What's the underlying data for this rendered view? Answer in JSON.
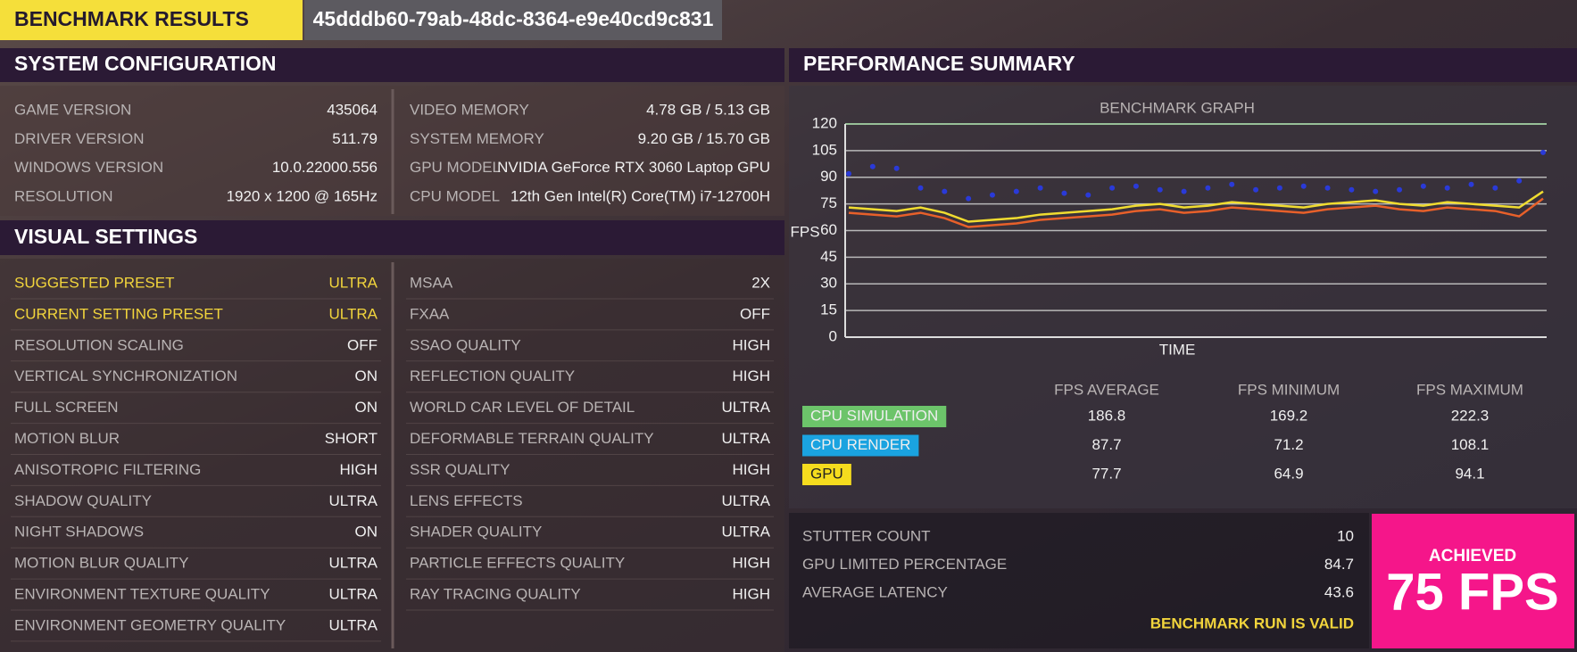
{
  "header": {
    "title": "BENCHMARK RESULTS",
    "id": "45dddb60-79ab-48dc-8364-e9e40cd9c831"
  },
  "system_configuration": {
    "title": "SYSTEM CONFIGURATION",
    "left": [
      [
        "GAME VERSION",
        "435064"
      ],
      [
        "DRIVER VERSION",
        "511.79"
      ],
      [
        "WINDOWS VERSION",
        "10.0.22000.556"
      ],
      [
        "RESOLUTION",
        "1920 x 1200 @ 165Hz"
      ]
    ],
    "right": [
      [
        "VIDEO MEMORY",
        "4.78 GB / 5.13 GB"
      ],
      [
        "SYSTEM MEMORY",
        "9.20 GB / 15.70 GB"
      ],
      [
        "GPU MODEL",
        "NVIDIA GeForce RTX 3060 Laptop GPU"
      ],
      [
        "CPU MODEL",
        "12th Gen Intel(R) Core(TM) i7-12700H"
      ]
    ]
  },
  "visual_settings": {
    "title": "VISUAL SETTINGS",
    "highlight_color": "#f2d53c",
    "left": [
      {
        "label": "SUGGESTED PRESET",
        "value": "ULTRA",
        "highlight": true
      },
      {
        "label": "CURRENT SETTING PRESET",
        "value": "ULTRA",
        "highlight": true
      },
      {
        "label": "RESOLUTION SCALING",
        "value": "OFF"
      },
      {
        "label": "VERTICAL SYNCHRONIZATION",
        "value": "ON"
      },
      {
        "label": "FULL SCREEN",
        "value": "ON"
      },
      {
        "label": "MOTION BLUR",
        "value": "SHORT"
      },
      {
        "label": "ANISOTROPIC FILTERING",
        "value": "HIGH"
      },
      {
        "label": "SHADOW QUALITY",
        "value": "ULTRA"
      },
      {
        "label": "NIGHT SHADOWS",
        "value": "ON"
      },
      {
        "label": "MOTION BLUR QUALITY",
        "value": "ULTRA"
      },
      {
        "label": "ENVIRONMENT TEXTURE QUALITY",
        "value": "ULTRA"
      },
      {
        "label": "ENVIRONMENT GEOMETRY QUALITY",
        "value": "ULTRA"
      }
    ],
    "right": [
      {
        "label": "MSAA",
        "value": "2X"
      },
      {
        "label": "FXAA",
        "value": "OFF"
      },
      {
        "label": "SSAO QUALITY",
        "value": "HIGH"
      },
      {
        "label": "REFLECTION QUALITY",
        "value": "HIGH"
      },
      {
        "label": "WORLD CAR LEVEL OF DETAIL",
        "value": "ULTRA"
      },
      {
        "label": "DEFORMABLE TERRAIN QUALITY",
        "value": "ULTRA"
      },
      {
        "label": "SSR QUALITY",
        "value": "HIGH"
      },
      {
        "label": "LENS EFFECTS",
        "value": "ULTRA"
      },
      {
        "label": "SHADER QUALITY",
        "value": "ULTRA"
      },
      {
        "label": "PARTICLE EFFECTS QUALITY",
        "value": "HIGH"
      },
      {
        "label": "RAY TRACING QUALITY",
        "value": "HIGH"
      }
    ]
  },
  "performance_summary": {
    "title": "PERFORMANCE SUMMARY"
  },
  "chart_data": {
    "type": "line",
    "title": "BENCHMARK GRAPH",
    "xlabel": "TIME",
    "ylabel": "FPS",
    "ylim": [
      0,
      120
    ],
    "yticks": [
      0,
      15,
      30,
      45,
      60,
      75,
      90,
      105,
      120
    ],
    "grid": true,
    "series": [
      {
        "color": "#2a3ad8",
        "style": "dots",
        "values": [
          92,
          96,
          95,
          84,
          82,
          78,
          80,
          82,
          84,
          81,
          80,
          84,
          85,
          83,
          82,
          84,
          86,
          83,
          84,
          85,
          84,
          83,
          82,
          83,
          85,
          84,
          86,
          84,
          88,
          104
        ]
      },
      {
        "color": "#f0dc30",
        "style": "line",
        "values": [
          73,
          72,
          71,
          73,
          70,
          65,
          66,
          67,
          69,
          70,
          71,
          72,
          74,
          75,
          73,
          74,
          76,
          75,
          74,
          73,
          75,
          76,
          77,
          75,
          74,
          76,
          75,
          74,
          73,
          82
        ]
      },
      {
        "color": "#e8602a",
        "style": "line",
        "values": [
          70,
          69,
          68,
          70,
          67,
          62,
          63,
          64,
          66,
          67,
          68,
          69,
          71,
          72,
          70,
          71,
          73,
          72,
          71,
          70,
          72,
          73,
          74,
          72,
          71,
          73,
          72,
          71,
          68,
          78
        ]
      }
    ]
  },
  "fps_table": {
    "columns": [
      "FPS AVERAGE",
      "FPS MINIMUM",
      "FPS MAXIMUM"
    ],
    "rows": [
      {
        "name": "CPU SIMULATION",
        "color": "#6cc46a",
        "values": [
          186.8,
          169.2,
          222.3
        ]
      },
      {
        "name": "CPU RENDER",
        "color": "#1aa3e0",
        "values": [
          87.7,
          71.2,
          108.1
        ]
      },
      {
        "name": "GPU",
        "color": "#f5dc1e",
        "values": [
          77.7,
          64.9,
          94.1
        ]
      }
    ]
  },
  "stats": {
    "rows": [
      {
        "label": "STUTTER COUNT",
        "value": 10
      },
      {
        "label": "GPU LIMITED PERCENTAGE",
        "value": 84.7
      },
      {
        "label": "AVERAGE LATENCY",
        "value": 43.6
      }
    ],
    "status": "BENCHMARK RUN IS VALID"
  },
  "achieved": {
    "label": "ACHIEVED",
    "value": "75 FPS"
  }
}
